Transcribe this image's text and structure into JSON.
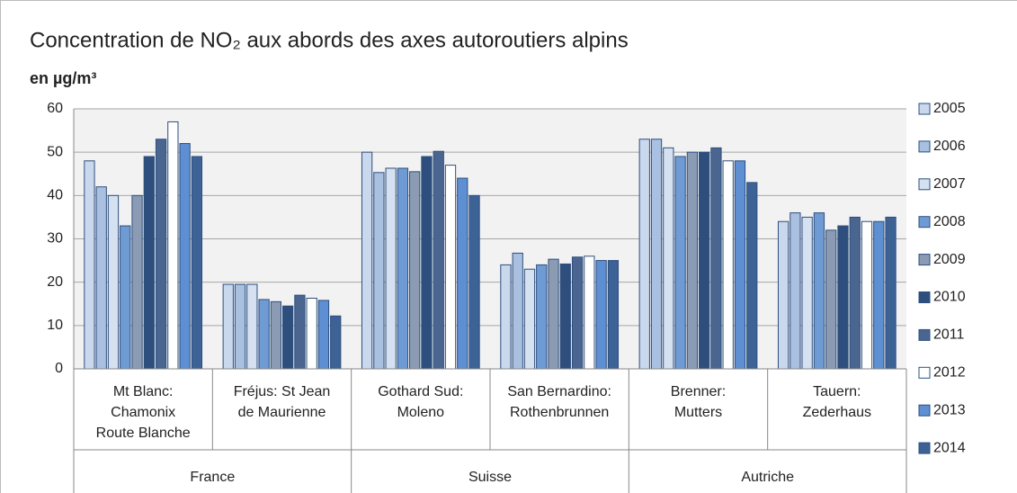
{
  "chart_data": {
    "type": "bar",
    "title": "Concentration de NO₂ aux abords des axes autoroutiers alpins",
    "subtitle": "en µg/m³",
    "categories": [
      "Mt Blanc:\nChamonix\nRoute Blanche",
      "Fréjus: St Jean\nde Maurienne",
      "Gothard Sud:\nMoleno",
      "San Bernardino:\nRothenbrunnen",
      "Brenner:\nMutters",
      "Tauern:\nZederhaus"
    ],
    "category_groups": [
      "France",
      "France",
      "Suisse",
      "Suisse",
      "Autriche",
      "Autriche"
    ],
    "series": [
      {
        "name": "2005",
        "color": "#c9d8ec",
        "values": [
          48,
          19.5,
          50,
          24,
          53,
          34
        ]
      },
      {
        "name": "2006",
        "color": "#a9c0e0",
        "values": [
          42,
          19.5,
          45.3,
          26.7,
          53,
          36
        ]
      },
      {
        "name": "2007",
        "color": "#d5e1f0",
        "values": [
          40,
          19.5,
          46.3,
          23,
          51,
          35
        ]
      },
      {
        "name": "2008",
        "color": "#6f9bd4",
        "values": [
          33,
          16,
          46.3,
          24,
          49,
          36
        ]
      },
      {
        "name": "2009",
        "color": "#8a9bb3",
        "values": [
          40,
          15.5,
          45.5,
          25.3,
          50,
          32
        ]
      },
      {
        "name": "2010",
        "color": "#2e4f7e",
        "values": [
          49,
          14.5,
          49,
          24.2,
          50,
          33
        ]
      },
      {
        "name": "2011",
        "color": "#4a6690",
        "values": [
          53,
          17,
          50.2,
          25.8,
          51,
          35
        ]
      },
      {
        "name": "2012",
        "color": "#ffffff",
        "values": [
          57,
          16.3,
          47,
          26,
          48,
          34
        ]
      },
      {
        "name": "2013",
        "color": "#5d8fd2",
        "values": [
          52,
          15.8,
          44,
          25,
          48,
          34
        ]
      },
      {
        "name": "2014",
        "color": "#3d6296",
        "values": [
          49,
          12.2,
          40,
          25,
          43,
          35
        ]
      }
    ],
    "ylim": [
      0,
      60
    ],
    "yticks": [
      0,
      10,
      20,
      30,
      40,
      50,
      60
    ],
    "grid": true,
    "legend": "right"
  }
}
